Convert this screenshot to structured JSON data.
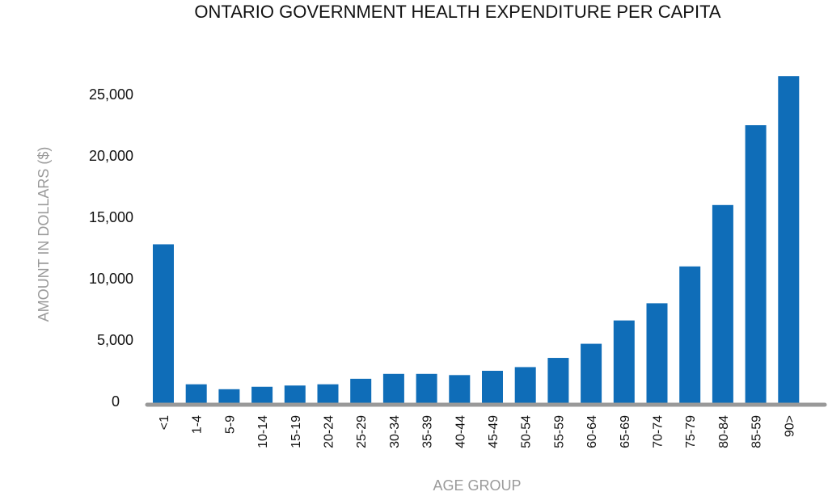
{
  "chart_data": {
    "type": "bar",
    "title": "ONTARIO GOVERNMENT HEALTH EXPENDITURE PER CAPITA",
    "xlabel": "AGE GROUP",
    "ylabel": "AMOUNT IN DOLLARS ($)",
    "categories": [
      "<1",
      "1-4",
      "5-9",
      "10-14",
      "15-19",
      "20-24",
      "25-29",
      "30-34",
      "35-39",
      "40-44",
      "45-49",
      "50-54",
      "55-59",
      "60-64",
      "65-69",
      "70-74",
      "75-79",
      "80-84",
      "85-59",
      "90>"
    ],
    "values": [
      12800,
      1400,
      1000,
      1200,
      1300,
      1400,
      1850,
      2250,
      2250,
      2150,
      2500,
      2800,
      3550,
      4700,
      6600,
      8000,
      11000,
      16000,
      22500,
      26500
    ],
    "yticks": [
      0,
      5000,
      10000,
      15000,
      20000,
      25000
    ],
    "ytick_labels": [
      "0",
      "5,000",
      "10,000",
      "15,000",
      "20,000",
      "25,000"
    ],
    "ylim": [
      0,
      27000
    ],
    "grid": false,
    "colors": {
      "bar": "#0f6db8",
      "axis": "#999999",
      "text": "#111111",
      "label": "#9a9a9a"
    }
  }
}
